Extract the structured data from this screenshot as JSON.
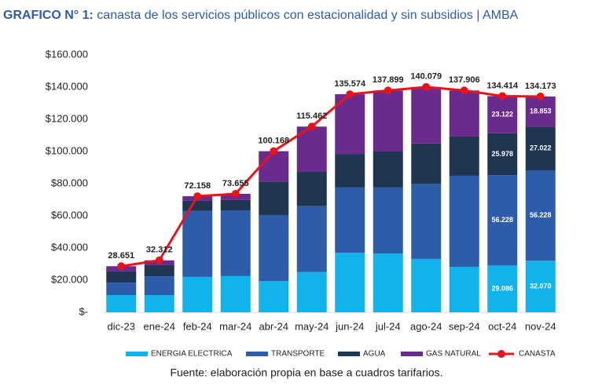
{
  "chart_data": {
    "type": "bar-line",
    "title_label": "GRAFICO N° 1:",
    "title": "canasta de los servicios públicos con estacionalidad y sin subsidios | AMBA",
    "note": "Fuente: elaboración propia en base a cuadros tarifarios.",
    "categories": [
      "dic-23",
      "ene-24",
      "feb-24",
      "mar-24",
      "abr-24",
      "may-24",
      "jun-24",
      "jul-24",
      "ago-24",
      "sep-24",
      "oct-24",
      "nov-24"
    ],
    "series": [
      {
        "name": "ENERGIA ELECTRICA",
        "color": "#12b2ec",
        "values": [
          10700,
          10700,
          22000,
          22500,
          19500,
          25000,
          37000,
          36600,
          33200,
          28300,
          29086,
          32070
        ],
        "value_labels": [
          null,
          null,
          null,
          null,
          null,
          null,
          null,
          null,
          null,
          null,
          "29.086",
          "32.070"
        ]
      },
      {
        "name": "TRANSPORTE",
        "color": "#2f5ca8",
        "values": [
          7800,
          11700,
          41000,
          40900,
          41000,
          41000,
          40600,
          41000,
          46800,
          56600,
          56228,
          56228
        ],
        "value_labels": [
          null,
          null,
          null,
          null,
          null,
          null,
          null,
          null,
          null,
          null,
          "56.228",
          "56.228"
        ]
      },
      {
        "name": "AGUA",
        "color": "#1f3552",
        "values": [
          6900,
          6900,
          6300,
          6400,
          20500,
          21300,
          20900,
          22400,
          25000,
          24400,
          25978,
          27022
        ],
        "value_labels": [
          null,
          null,
          null,
          null,
          null,
          null,
          null,
          null,
          null,
          null,
          "25.978",
          "27.022"
        ]
      },
      {
        "name": "GAS NATURAL",
        "color": "#6b2a8e",
        "values": [
          3251,
          3012,
          2858,
          3855,
          19168,
          28162,
          37074,
          37899,
          35079,
          28606,
          23122,
          18853
        ],
        "value_labels": [
          null,
          null,
          null,
          null,
          null,
          null,
          null,
          null,
          null,
          null,
          "23.122",
          "18.853"
        ]
      },
      {
        "name": "CANASTA",
        "color": "#e8141c",
        "line": true,
        "values": [
          28651,
          32312,
          72158,
          73655,
          100168,
          115462,
          135574,
          137899,
          140079,
          137906,
          134414,
          134173
        ],
        "value_labels": [
          "28.651",
          "32.312",
          "72.158",
          "73.655",
          "100.168",
          "115.462",
          "135.574",
          "137.899",
          "140.079",
          "137.906",
          "134.414",
          "134.173"
        ]
      }
    ],
    "ylim": [
      0,
      160000
    ],
    "yticks": [
      {
        "value": 0,
        "label": "$-"
      },
      {
        "value": 20000,
        "label": "$20.000"
      },
      {
        "value": 40000,
        "label": "$40.000"
      },
      {
        "value": 60000,
        "label": "$60.000"
      },
      {
        "value": 80000,
        "label": "$80.000"
      },
      {
        "value": 100000,
        "label": "$100.000"
      },
      {
        "value": 120000,
        "label": "$120.000"
      },
      {
        "value": 140000,
        "label": "$140.000"
      },
      {
        "value": 160000,
        "label": "$160.000"
      }
    ],
    "grid": false,
    "legend": "bottom"
  }
}
